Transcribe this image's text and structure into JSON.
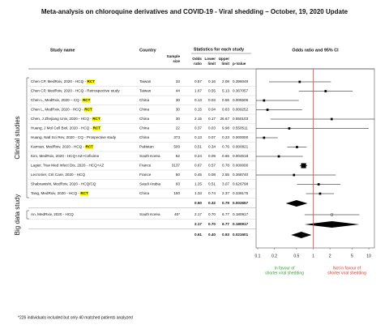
{
  "chart_data": {
    "type": "forest",
    "title": "Meta-analysis on chloroquine derivatives and COVID-19 - Viral shedding – October, 19, 2020 Update",
    "headers": {
      "study": "Study name",
      "country": "Country",
      "sample": [
        "Sample",
        "size"
      ],
      "stats": "Statistics for each study",
      "columns": [
        [
          "Odds",
          "ratio"
        ],
        [
          "Lower",
          "limit"
        ],
        [
          "Upper",
          "limit"
        ],
        [
          "p-Value"
        ]
      ],
      "plot": "Odds ratio and 95% CI"
    },
    "xlim": [
      0.1,
      10
    ],
    "xticks": [
      0.1,
      0.2,
      0.5,
      1,
      2,
      5,
      10
    ],
    "log_x": true,
    "reference": 1,
    "reference_color": "#e8473b",
    "marker_color": "#000000",
    "groups": [
      {
        "label": "Clinical studies",
        "studies": [
          {
            "name": "Chen CP, MedRxiv, 2020 - HCQ -",
            "tag": "RCT",
            "country": "Taiwan",
            "n": 33,
            "values": [
              0.57,
              0.16,
              2.08,
              0.396048
            ],
            "value_labels": [
              "0.57",
              "0.16",
              "2.08",
              "0.396048"
            ]
          },
          {
            "name": "Chen CP, MedRxiv, 2020 - HCQ - Retrospective study",
            "country": "Taiwan",
            "n": 44,
            "values": [
              1.67,
              0.55,
              5.13,
              0.367057
            ],
            "value_labels": [
              "1.67",
              "0.55",
              "5.13",
              "0.367057"
            ]
          },
          {
            "name": "Chen L, MedRxiv, 2020 – CQ -",
            "tag": "RCT",
            "country": "China",
            "n": 30,
            "values": [
              0.13,
              0.03,
              0.55,
              0.005506
            ],
            "value_labels": [
              "0.13",
              "0.03",
              "0.55",
              "0.005506"
            ]
          },
          {
            "name": "Chen L, MedRxiv, 2020 - HCQ -",
            "tag": "RCT",
            "country": "China",
            "n": 30,
            "values": [
              0.15,
              0.04,
              0.63,
              0.009252
            ],
            "value_labels": [
              "0.15",
              "0.04",
              "0.63",
              "0.009252"
            ]
          },
          {
            "name": "Chen, J Zhejiang Univ, 2020 - HCQ -",
            "tag": "RCT",
            "country": "China",
            "n": 30,
            "values": [
              2.15,
              0.17,
              26.67,
              0.550103
            ],
            "value_labels": [
              "2.15",
              "0.17",
              "26.67",
              "0.550103"
            ]
          },
          {
            "name": "Huang, J Mol Cell Biol, 2020 - HCQ -",
            "tag": "RCT",
            "country": "China",
            "n": 22,
            "values": [
              0.37,
              0.03,
              9.98,
              0.550511
            ],
            "value_labels": [
              "0.37",
              "0.03",
              "9.98",
              "0.550511"
            ]
          },
          {
            "name": "Huang, Natl Sci Rev, 2020 - CQ - Prospective study",
            "country": "China",
            "n": 373,
            "values": [
              0.13,
              0.07,
              0.23,
              0
            ],
            "value_labels": [
              "0.13",
              "0.07",
              "0.23",
              "0.000000"
            ]
          },
          {
            "name": "Karman, MedRxiv, 2020 - HCQ -",
            "tag": "RCT",
            "country": "Pakistan",
            "n": 500,
            "values": [
              0.51,
              0.34,
              0.76,
              0.000821
            ],
            "value_labels": [
              "0.51",
              "0.34",
              "0.76",
              "0.000821"
            ]
          },
          {
            "name": "Kim, MedRxiv, 2020 - HCQ+AZ+Cefixime",
            "country": "South Korea",
            "n": 62,
            "values": [
              0.24,
              0.09,
              0.65,
              0.004518
            ],
            "value_labels": [
              "0.24",
              "0.09",
              "0.65",
              "0.004518"
            ]
          },
          {
            "name": "Lagier, Trav Med Infect Dis, 2020 - HCQ+AZ",
            "country": "France",
            "n": 3137,
            "values": [
              0.67,
              0.57,
              0.78,
              0
            ],
            "value_labels": [
              "0.67",
              "0.57",
              "0.78",
              "0.000000"
            ]
          },
          {
            "name": "Lecronier, Crit Care, 2020 - HCQ",
            "country": "France",
            "n": 50,
            "values": [
              0.45,
              0.08,
              2.55,
              0.36874
            ],
            "value_labels": [
              "0.45",
              "0.08",
              "2.55",
              "0.368740"
            ]
          },
          {
            "name": "Shabrawishi, MedRxiv, 2020 - HCQ/CQ",
            "country": "Saudi Arabia",
            "n": 93,
            "values": [
              1.25,
              0.51,
              3.07,
              0.626798
            ],
            "value_labels": [
              "1.25",
              "0.51",
              "3.07",
              "0.626798"
            ]
          },
          {
            "name": "Tang, MedRxiv, 2020 - HCQ -",
            "tag": "RCT",
            "country": "China",
            "n": 150,
            "values": [
              1.33,
              0.74,
              2.37,
              0.339175
            ],
            "value_labels": [
              "1.33",
              "0.74",
              "2.37",
              "0.339175"
            ]
          }
        ],
        "subtotal": {
          "values": [
            0.5,
            0.32,
            0.79,
            0.002657
          ],
          "value_labels": [
            "0.50",
            "0.32",
            "0.79",
            "0.002657"
          ]
        }
      },
      {
        "label": "Big data study",
        "studies": [
          {
            "name": "An, MedRxiv, 2020 - HCQ",
            "country": "South Korea",
            "n": "40*",
            "hollow": true,
            "values": [
              2.17,
              0.7,
              6.77,
              0.180917
            ],
            "value_labels": [
              "2.17",
              "0.70",
              "6.77",
              "0.180917"
            ]
          }
        ],
        "subtotal": {
          "values": [
            2.17,
            0.7,
            6.77,
            0.180917
          ],
          "value_labels": [
            "2.17",
            "0.70",
            "6.77",
            "0.180917"
          ]
        }
      }
    ],
    "overall": {
      "values": [
        0.61,
        0.4,
        0.93,
        0.021601
      ],
      "value_labels": [
        "0.61",
        "0.40",
        "0.93",
        "0.021601"
      ]
    },
    "annotations": [
      {
        "text": [
          "In favour of",
          "shorter viral shedding"
        ],
        "color": "#2ca02c",
        "side": "left"
      },
      {
        "text": [
          "Not in favour of",
          "shorter viral shedding"
        ],
        "color": "#e0302a",
        "side": "right"
      }
    ],
    "footnote": "*226 individuals included but only 40 matched patients analyzed"
  }
}
